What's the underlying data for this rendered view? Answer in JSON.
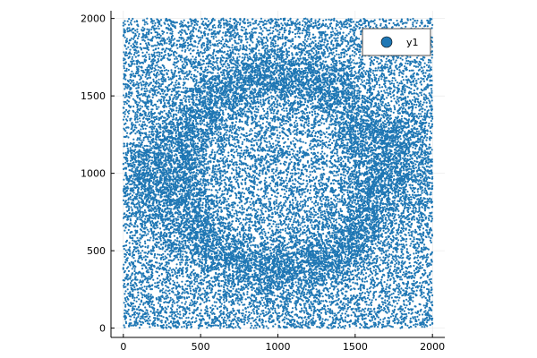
{
  "chart_data": {
    "type": "scatter",
    "title": "",
    "xlabel": "",
    "ylabel": "",
    "xlim": [
      -80,
      2080
    ],
    "ylim": [
      -60,
      2050
    ],
    "x_ticks": [
      0,
      500,
      1000,
      1500,
      2000
    ],
    "y_ticks": [
      0,
      500,
      1000,
      1500,
      2000
    ],
    "x_tick_labels": [
      "0",
      "500",
      "1000",
      "1500",
      "2000"
    ],
    "y_tick_labels": [
      "0",
      "500",
      "1000",
      "1500",
      "2000"
    ],
    "grid": true,
    "legend_position": "top-right",
    "series": [
      {
        "name": "y1",
        "color": "#1f77b4",
        "marker": "circle",
        "point_count": 40000,
        "domain_x": [
          0,
          2000
        ],
        "domain_y": [
          0,
          2000
        ],
        "pattern": "uniformly random points on a 2000x2000 square with a denser band forming a spiral / yin-yang shape: a ring around center (1000,1000) with radius about 630 plus two lobes near (180,950) and (1800,1100)"
      }
    ]
  }
}
